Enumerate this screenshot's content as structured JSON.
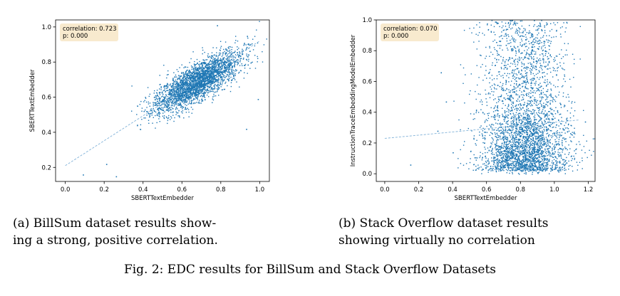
{
  "captions": {
    "a_line1": "(a) BillSum dataset results show-",
    "a_line2": "ing a strong, positive correlation.",
    "b_line1": "(b) Stack Overflow dataset results",
    "b_line2": "showing virtually no correlation",
    "figure": "Fig. 2: EDC results for BillSum and Stack Overflow Datasets"
  },
  "chart_data": [
    {
      "type": "scatter",
      "title": "",
      "xlabel": "SBERTTextEmbedder",
      "ylabel": "SBERTTextEmbedder",
      "xlim": [
        -0.05,
        1.05
      ],
      "ylim": [
        0.12,
        1.04
      ],
      "xticks": [
        "0.0",
        "0.2",
        "0.4",
        "0.6",
        "0.8",
        "1.0"
      ],
      "yticks": [
        "0.2",
        "0.4",
        "0.6",
        "0.8",
        "1.0"
      ],
      "annotation": [
        "correlation: 0.723",
        "p: 0.000"
      ],
      "point_color": "#1f77b4",
      "distribution": {
        "x_center": 0.68,
        "y_center": 0.69,
        "x_sd": 0.11,
        "y_sd": 0.085,
        "count": 3000
      },
      "outliers": [
        [
          0.09,
          0.16
        ],
        [
          0.26,
          0.15
        ],
        [
          0.93,
          0.42
        ],
        [
          0.99,
          0.59
        ],
        [
          0.21,
          0.22
        ],
        [
          0.78,
          1.01
        ]
      ],
      "regression_line": [
        [
          0.0,
          0.21
        ],
        [
          1.0,
          0.92
        ]
      ],
      "grid": false,
      "legend": "none"
    },
    {
      "type": "scatter",
      "title": "",
      "xlabel": "SBERTTextEmbedder",
      "ylabel": "InstructionTraceEmbeddingModelEmbedder",
      "xlim": [
        -0.05,
        1.24
      ],
      "ylim": [
        -0.05,
        1.0
      ],
      "xticks": [
        "0.0",
        "0.2",
        "0.4",
        "0.6",
        "0.8",
        "1.0",
        "1.2"
      ],
      "yticks": [
        "0.0",
        "0.2",
        "0.4",
        "0.6",
        "0.8",
        "1.0"
      ],
      "annotation": [
        "correlation: 0.070",
        "p: 0.000"
      ],
      "point_color": "#1f77b4",
      "distribution": {
        "x_center": 0.82,
        "x_sd": 0.13,
        "y_range": [
          0.0,
          1.0
        ],
        "count": 3500
      },
      "outliers": [
        [
          0.15,
          0.06
        ],
        [
          0.31,
          0.28
        ],
        [
          0.33,
          0.66
        ],
        [
          0.36,
          0.47
        ],
        [
          1.18,
          0.34
        ],
        [
          0.4,
          0.14
        ]
      ],
      "regression_line": [
        [
          0.0,
          0.23
        ],
        [
          1.15,
          0.35
        ]
      ],
      "grid": false,
      "legend": "none"
    }
  ]
}
